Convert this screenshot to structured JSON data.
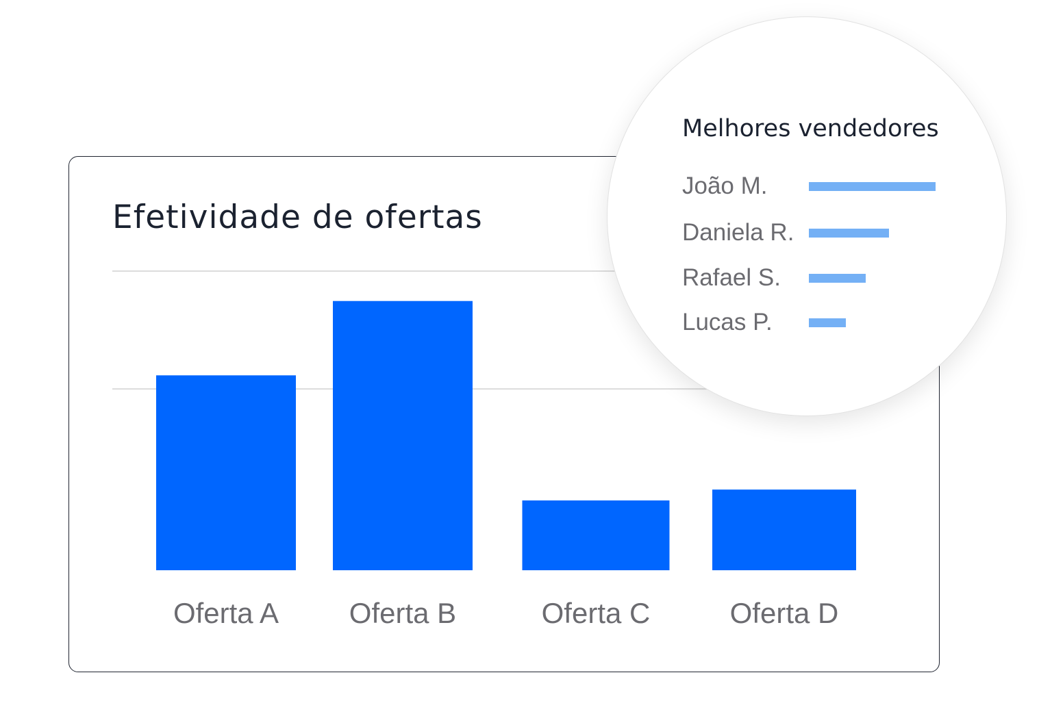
{
  "card": {
    "title": "Efetividade de ofertas"
  },
  "colors": {
    "bar": "#0066ff",
    "seller_bar": "#74b0f5",
    "gridline": "#dcdcdc"
  },
  "chart_data": {
    "type": "bar",
    "title": "Efetividade de ofertas",
    "categories": [
      "Oferta A",
      "Oferta B",
      "Oferta C",
      "Oferta D"
    ],
    "values": [
      2.15,
      2.97,
      0.77,
      0.89
    ],
    "ylim": [
      0,
      3.3
    ],
    "gridlines": [
      2,
      3.3
    ],
    "grid": true,
    "legend": "none"
  },
  "sellers": {
    "title": "Melhores vendedores",
    "items": [
      {
        "name": "João M.",
        "value": 1.0
      },
      {
        "name": "Daniela R.",
        "value": 0.63
      },
      {
        "name": "Rafael S.",
        "value": 0.45
      },
      {
        "name": "Lucas P.",
        "value": 0.29
      }
    ]
  }
}
